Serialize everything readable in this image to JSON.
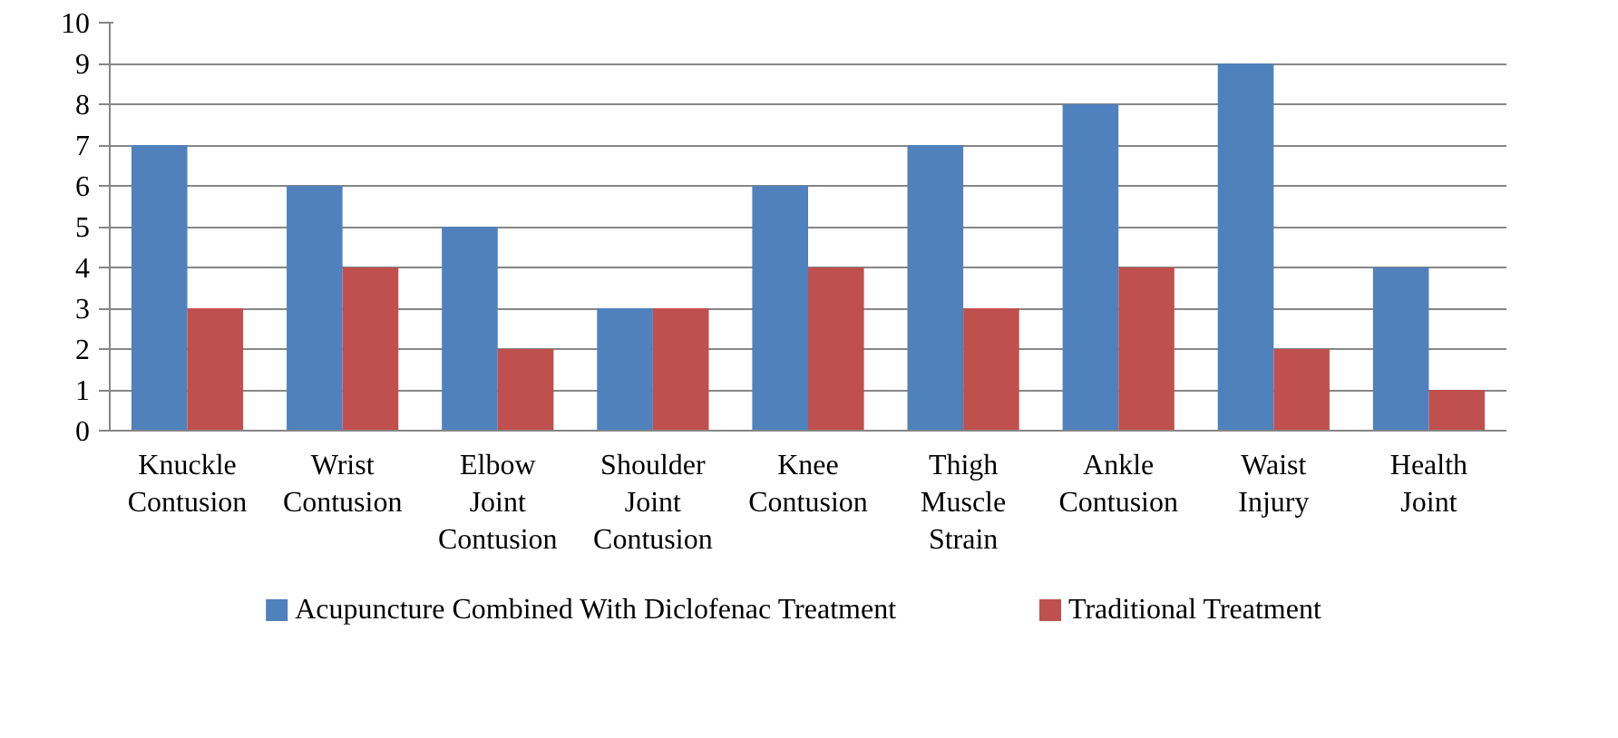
{
  "chart_data": {
    "type": "bar",
    "categories": [
      "Knuckle Contusion",
      "Wrist Contusion",
      "Elbow Joint Contusion",
      "Shoulder Joint Contusion",
      "Knee Contusion",
      "Thigh Muscle Strain",
      "Ankle Contusion",
      "Waist Injury",
      "Health Joint"
    ],
    "series": [
      {
        "name": "Acupuncture Combined With Diclofenac Treatment",
        "color": "#4f81bd",
        "values": [
          7,
          6,
          5,
          3,
          6,
          7,
          8,
          9,
          4
        ]
      },
      {
        "name": "Traditional Treatment",
        "color": "#c0504d",
        "values": [
          3,
          4,
          2,
          3,
          4,
          3,
          4,
          2,
          1
        ]
      }
    ],
    "ylim": [
      0,
      10
    ],
    "yticks": [
      0,
      1,
      2,
      3,
      4,
      5,
      6,
      7,
      8,
      9,
      10
    ],
    "grid": "y",
    "legend": "bottom"
  }
}
